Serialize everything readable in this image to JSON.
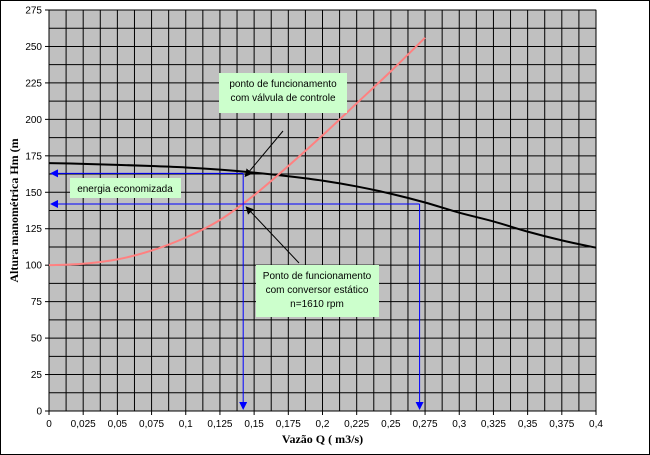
{
  "chart_data": {
    "type": "line",
    "title": "",
    "xlabel": "Vazão Q ( m3/s)",
    "ylabel": "Altura manométrica  Hm (m",
    "xlim": [
      0,
      0.4
    ],
    "ylim": [
      0,
      275
    ],
    "x_ticks": [
      "0",
      "0,025",
      "0,05",
      "0,075",
      "0,1",
      "0,125",
      "0,15",
      "0,175",
      "0,2",
      "0,225",
      "0,25",
      "0,275",
      "0,3",
      "0,325",
      "0,35",
      "0,375",
      "0,4"
    ],
    "y_ticks": [
      "0",
      "25",
      "50",
      "75",
      "100",
      "125",
      "150",
      "175",
      "200",
      "225",
      "250",
      "275"
    ],
    "grid": true,
    "plot_background": "#c0c0c0",
    "series": [
      {
        "color": "#000000",
        "x": [
          0,
          0.025,
          0.05,
          0.075,
          0.1,
          0.125,
          0.15,
          0.175,
          0.2,
          0.225,
          0.25,
          0.275,
          0.3,
          0.325,
          0.35,
          0.375,
          0.4
        ],
        "y": [
          170,
          169.5,
          168.8,
          168,
          167,
          165.5,
          163.5,
          161,
          158,
          154,
          149,
          143,
          136,
          130,
          123,
          117,
          112
        ]
      },
      {
        "color": "#ff8080",
        "x": [
          0,
          0.025,
          0.05,
          0.075,
          0.1,
          0.125,
          0.15,
          0.175,
          0.2,
          0.225,
          0.25,
          0.275
        ],
        "y": [
          100,
          101,
          104,
          110,
          119,
          131,
          148,
          168,
          189,
          211,
          233,
          256
        ]
      }
    ],
    "annotations": [
      {
        "id": "valve",
        "lines": [
          "ponto de funcionamento",
          "com válvula de controle"
        ],
        "point": [
          0.142,
          163
        ]
      },
      {
        "id": "converter",
        "lines": [
          "Ponto de funcionamento",
          "com conversor estático",
          "n=1610 rpm"
        ],
        "point": [
          0.142,
          142
        ]
      },
      {
        "id": "energy",
        "lines": [
          "energia economizada"
        ]
      }
    ],
    "reference_lines": {
      "valve_head": 163,
      "converter_head": 142,
      "operating_flow": 0.142,
      "pump_curve_flow": 0.271,
      "color": "#0000ff"
    },
    "label_background": "#ccffcc"
  }
}
